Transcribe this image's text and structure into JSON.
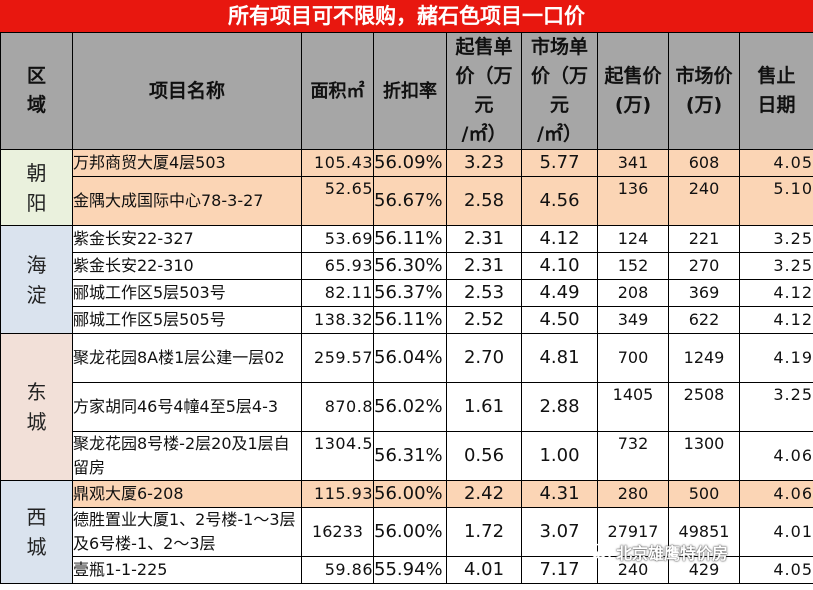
{
  "banner": "所有项目可不限购，赭石色项目一口价",
  "headers": {
    "district": "区\n域",
    "name": "项目名称",
    "area": "面积㎡",
    "discount": "折扣率",
    "start_unit": "起售单\n价（万\n元\n/㎡）",
    "market_unit": "市场单\n价（万\n元\n/㎡）",
    "start_total": "起售价\n(万)",
    "market_total": "市场价\n(万)",
    "deadline": "售止\n日期"
  },
  "districts": [
    "朝\n阳",
    "海\n淀",
    "东\n城",
    "西\n城"
  ],
  "rows": [
    {
      "name": "万邦商贸大厦4层503",
      "area": "105.43",
      "discount": "56.09%",
      "start_unit": "3.23",
      "market_unit": "5.77",
      "start_total": "341",
      "market_total": "608",
      "deadline": "4.05"
    },
    {
      "name": "金隅大成国际中心78-3-27",
      "area": "52.65",
      "discount": "56.67%",
      "start_unit": "2.58",
      "market_unit": "4.56",
      "start_total": "136",
      "market_total": "240",
      "deadline": "5.10"
    },
    {
      "name": "紫金长安22-327",
      "area": "53.69",
      "discount": "56.11%",
      "start_unit": "2.31",
      "market_unit": "4.12",
      "start_total": "124",
      "market_total": "221",
      "deadline": "3.25"
    },
    {
      "name": "紫金长安22-310",
      "area": "65.93",
      "discount": "56.30%",
      "start_unit": "2.31",
      "market_unit": "4.10",
      "start_total": "152",
      "market_total": "270",
      "deadline": "3.25"
    },
    {
      "name": "郦城工作区5层503号",
      "area": "82.11",
      "discount": "56.37%",
      "start_unit": "2.53",
      "market_unit": "4.49",
      "start_total": "208",
      "market_total": "369",
      "deadline": "4.12"
    },
    {
      "name": "郦城工作区5层505号",
      "area": "138.32",
      "discount": "56.11%",
      "start_unit": "2.52",
      "market_unit": "4.50",
      "start_total": "349",
      "market_total": "622",
      "deadline": "4.12"
    },
    {
      "name": "聚龙花园8A楼1层公建一层02",
      "area": "259.57",
      "discount": "56.04%",
      "start_unit": "2.70",
      "market_unit": "4.81",
      "start_total": "700",
      "market_total": "1249",
      "deadline": "4.19"
    },
    {
      "name": "方家胡同46号4幢4至5层4-3",
      "area": "870.8",
      "discount": "56.02%",
      "start_unit": "1.61",
      "market_unit": "2.88",
      "start_total": "1405",
      "market_total": "2508",
      "deadline": "3.25"
    },
    {
      "name": "聚龙花园8号楼-2层20及1层自留房",
      "area": "1304.5",
      "discount": "56.31%",
      "start_unit": "0.56",
      "market_unit": "1.00",
      "start_total": "732",
      "market_total": "1300",
      "deadline": "4.06"
    },
    {
      "name": "鼎观大厦6-208",
      "area": "115.93",
      "discount": "56.00%",
      "start_unit": "2.42",
      "market_unit": "4.31",
      "start_total": "280",
      "market_total": "500",
      "deadline": "4.06"
    },
    {
      "name": "德胜置业大厦1、2号楼-1～3层及6号楼-1、2～3层",
      "area": "16233",
      "discount": "56.00%",
      "start_unit": "1.72",
      "market_unit": "3.07",
      "start_total": "27917",
      "market_total": "49851",
      "deadline": "4.01"
    },
    {
      "name": "壹瓶1-1-225",
      "area": "59.86",
      "discount": "55.94%",
      "start_unit": "4.01",
      "market_unit": "7.17",
      "start_total": "240",
      "market_total": "429",
      "deadline": "4.05"
    }
  ],
  "watermark": "北京雄鹰特价房",
  "colors": {
    "banner": "#e8170f",
    "header": "#a6a6a6",
    "highlight": "#fbd5b5"
  }
}
